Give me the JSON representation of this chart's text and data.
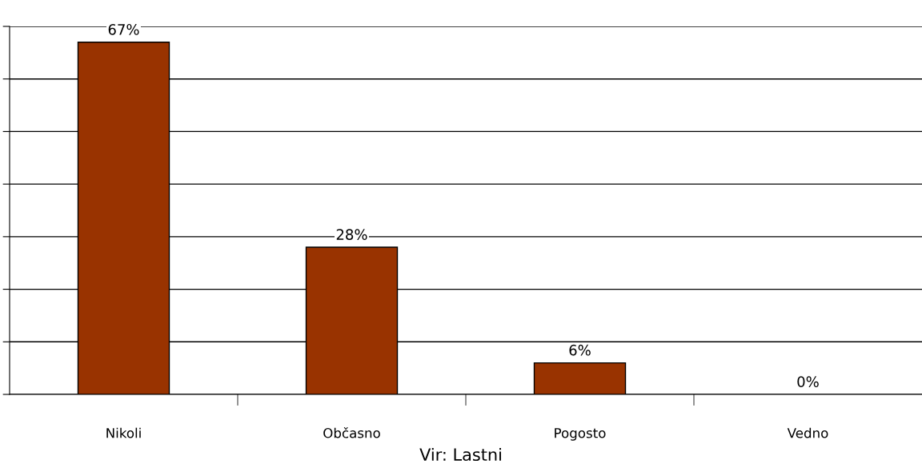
{
  "chart_data": {
    "type": "bar",
    "categories": [
      "Nikoli",
      "Občasno",
      "Pogosto",
      "Vedno"
    ],
    "values": [
      67,
      28,
      6,
      0
    ],
    "value_labels": [
      "67%",
      "28%",
      "6%",
      "0%"
    ],
    "color": "#993300",
    "ylim": [
      0,
      70
    ],
    "yticks": [
      {
        "value": 0,
        "label": null
      },
      {
        "value": 10,
        "label": null
      },
      {
        "value": 20,
        "label": null
      },
      {
        "value": 30,
        "label": null
      },
      {
        "value": 40,
        "label": null
      },
      {
        "value": 50,
        "label": null
      },
      {
        "value": 60,
        "label": null
      },
      {
        "value": 70,
        "label": null
      }
    ],
    "grid": "y",
    "annotations": [
      "Vir: Lastni"
    ]
  }
}
